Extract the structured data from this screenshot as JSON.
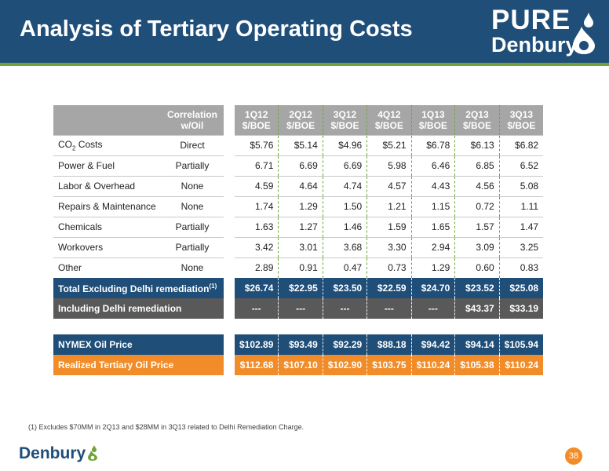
{
  "header": {
    "title": "Analysis of Tertiary Operating Costs",
    "logo_line1": "PURE",
    "logo_line2": "Denbury"
  },
  "table": {
    "corr_header_line1": "Correlation",
    "corr_header_line2": "w/Oil",
    "periods": [
      {
        "q": "1Q12",
        "unit": "$/BOE"
      },
      {
        "q": "2Q12",
        "unit": "$/BOE"
      },
      {
        "q": "3Q12",
        "unit": "$/BOE"
      },
      {
        "q": "4Q12",
        "unit": "$/BOE"
      },
      {
        "q": "1Q13",
        "unit": "$/BOE"
      },
      {
        "q": "2Q13",
        "unit": "$/BOE"
      },
      {
        "q": "3Q13",
        "unit": "$/BOE"
      }
    ],
    "co2_label": {
      "prefix": "CO",
      "sub": "2",
      "suffix": " Costs"
    },
    "rows": [
      {
        "label": "CO2 Costs",
        "corr": "Direct",
        "values": [
          "$5.76",
          "$5.14",
          "$4.96",
          "$5.21",
          "$6.78",
          "$6.13",
          "$6.82"
        ]
      },
      {
        "label": "Power & Fuel",
        "corr": "Partially",
        "values": [
          "6.71",
          "6.69",
          "6.69",
          "5.98",
          "6.46",
          "6.85",
          "6.52"
        ]
      },
      {
        "label": "Labor & Overhead",
        "corr": "None",
        "values": [
          "4.59",
          "4.64",
          "4.74",
          "4.57",
          "4.43",
          "4.56",
          "5.08"
        ]
      },
      {
        "label": "Repairs & Maintenance",
        "corr": "None",
        "values": [
          "1.74",
          "1.29",
          "1.50",
          "1.21",
          "1.15",
          "0.72",
          "1.11"
        ]
      },
      {
        "label": "Chemicals",
        "corr": "Partially",
        "values": [
          "1.63",
          "1.27",
          "1.46",
          "1.59",
          "1.65",
          "1.57",
          "1.47"
        ]
      },
      {
        "label": "Workovers",
        "corr": "Partially",
        "values": [
          "3.42",
          "3.01",
          "3.68",
          "3.30",
          "2.94",
          "3.09",
          "3.25"
        ]
      },
      {
        "label": "Other",
        "corr": "None",
        "values": [
          "2.89",
          "0.91",
          "0.47",
          "0.73",
          "1.29",
          "0.60",
          "0.83"
        ]
      }
    ],
    "total": {
      "label": "Total Excluding Delhi remediation",
      "sup": "(1)",
      "values": [
        "$26.74",
        "$22.95",
        "$23.50",
        "$22.59",
        "$24.70",
        "$23.52",
        "$25.08"
      ]
    },
    "including": {
      "label": "Including Delhi remediation",
      "values": [
        "---",
        "---",
        "---",
        "---",
        "---",
        "$43.37",
        "$33.19"
      ]
    },
    "nymex": {
      "label": "NYMEX Oil Price",
      "values": [
        "$102.89",
        "$93.49",
        "$92.29",
        "$88.18",
        "$94.42",
        "$94.14",
        "$105.94"
      ]
    },
    "realized": {
      "label": "Realized Tertiary Oil Price",
      "values": [
        "$112.68",
        "$107.10",
        "$102.90",
        "$103.75",
        "$110.24",
        "$105.38",
        "$110.24"
      ]
    }
  },
  "footnote": "(1)   Excludes $70MM in 2Q13 and $28MM in 3Q13 related to Delhi Remediation Charge.",
  "footer": {
    "logo": "Denbury",
    "page_number": "38"
  },
  "colors": {
    "navy": "#1f4e79",
    "green": "#71a33a",
    "orange": "#f28c28",
    "gray_header": "#a6a6a6",
    "dark_gray": "#595959"
  },
  "icons": [
    "water-drop-icon",
    "footer-drop-icon"
  ]
}
